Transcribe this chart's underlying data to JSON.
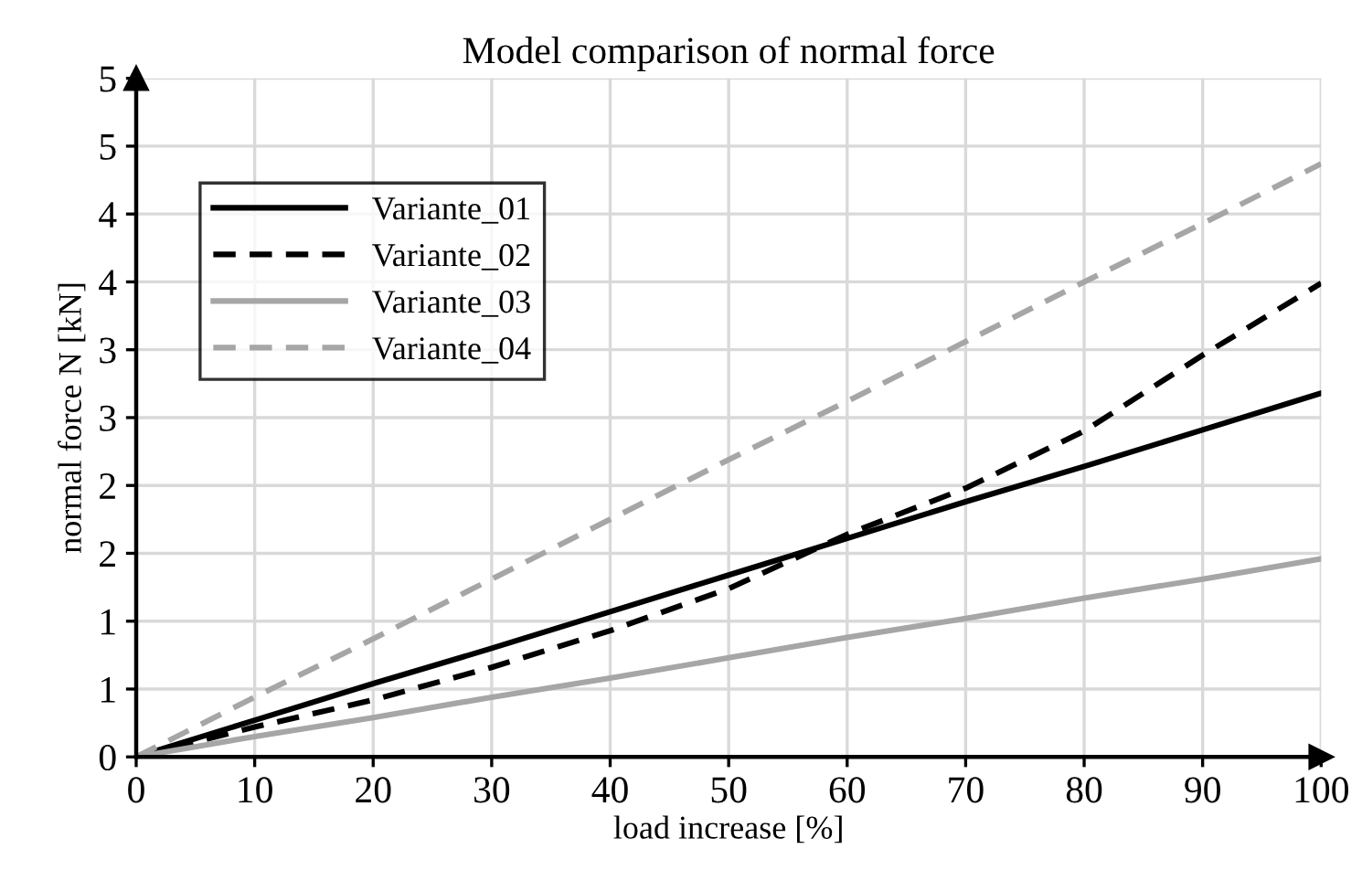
{
  "chart_data": {
    "type": "line",
    "title": "Model comparison of normal force",
    "xlabel": "load increase [%]",
    "ylabel": "normal force N [kN]",
    "x": [
      0,
      10,
      20,
      30,
      40,
      50,
      60,
      70,
      80,
      90,
      100
    ],
    "series": [
      {
        "name": "Variante_01",
        "color": "#000000",
        "line_style": "solid",
        "values": [
          0,
          0.27,
          0.54,
          0.8,
          1.07,
          1.34,
          1.61,
          1.88,
          2.14,
          2.41,
          2.68
        ]
      },
      {
        "name": "Variante_02",
        "color": "#000000",
        "line_style": "dashed",
        "values": [
          0,
          0.22,
          0.42,
          0.66,
          0.93,
          1.24,
          1.64,
          1.98,
          2.4,
          2.96,
          3.49
        ]
      },
      {
        "name": "Variante_03",
        "color": "#a6a6a6",
        "line_style": "solid",
        "values": [
          0,
          0.15,
          0.29,
          0.44,
          0.58,
          0.73,
          0.88,
          1.02,
          1.17,
          1.31,
          1.46
        ]
      },
      {
        "name": "Variante_04",
        "color": "#a6a6a6",
        "line_style": "dashed",
        "values": [
          0,
          0.44,
          0.87,
          1.31,
          1.75,
          2.19,
          2.62,
          3.06,
          3.5,
          3.93,
          4.37
        ]
      }
    ],
    "xlim": [
      0,
      100
    ],
    "xticks": [
      0,
      10,
      20,
      30,
      40,
      50,
      60,
      70,
      80,
      90,
      100
    ],
    "ylim": [
      0,
      5
    ],
    "yticks": [
      0,
      {
        "value": 0.5,
        "label": "1"
      },
      1,
      {
        "value": 1.5,
        "label": "2"
      },
      2,
      {
        "value": 2.5,
        "label": "3"
      },
      3,
      {
        "value": 3.5,
        "label": "4"
      },
      4,
      {
        "value": 4.5,
        "label": "5"
      },
      5
    ],
    "grid": true,
    "legend": "top left",
    "marker": "none"
  }
}
